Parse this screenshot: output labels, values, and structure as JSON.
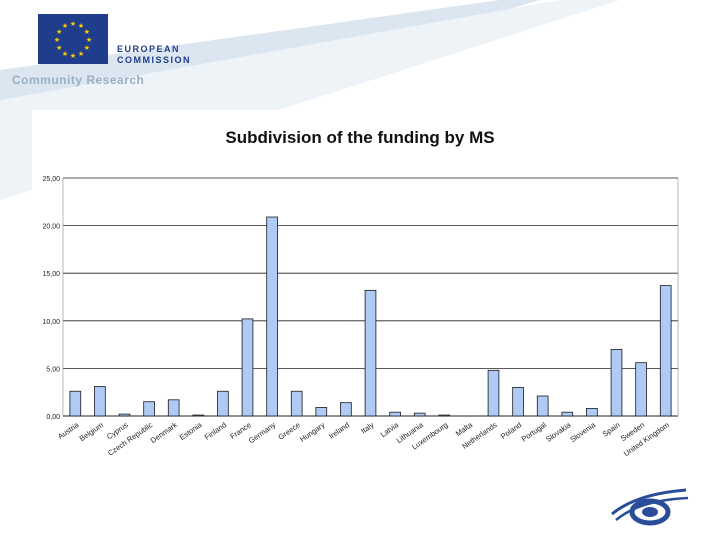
{
  "header": {
    "org_line1": "EUROPEAN",
    "org_line2": "COMMISSION",
    "tagline": "Community Research",
    "flag_icon": "eu-flag-icon",
    "logo_icon": "fp6-logo-icon"
  },
  "colors": {
    "bar_fill": "#aecbf5",
    "bar_stroke": "#1a1a1a",
    "grid": "#222222",
    "brand_blue": "#1f3d8a"
  },
  "chart_data": {
    "type": "bar",
    "title": "Subdivision of the funding by MS",
    "xlabel": "",
    "ylabel": "",
    "ylim": [
      0,
      25
    ],
    "grid": true,
    "legend": "none",
    "yticks": [
      "0,00",
      "5,00",
      "10,00",
      "15,00",
      "20,00",
      "25,00"
    ],
    "categories": [
      "Austria",
      "Belgium",
      "Cyprus",
      "Czech Republic",
      "Denmark",
      "Estonia",
      "Finland",
      "France",
      "Germany",
      "Greece",
      "Hungary",
      "Ireland",
      "Italy",
      "Latvia",
      "Lithuania",
      "Luxembourg",
      "Malta",
      "Netherlands",
      "Poland",
      "Portugal",
      "Slovakia",
      "Slovenia",
      "Spain",
      "Sweden",
      "United Kingdom"
    ],
    "values": [
      2.6,
      3.1,
      0.2,
      1.5,
      1.7,
      0.1,
      2.6,
      10.2,
      20.9,
      2.6,
      0.9,
      1.4,
      13.2,
      0.4,
      0.3,
      0.1,
      0.0,
      4.8,
      3.0,
      2.1,
      0.4,
      0.8,
      7.0,
      5.6,
      13.7
    ]
  }
}
